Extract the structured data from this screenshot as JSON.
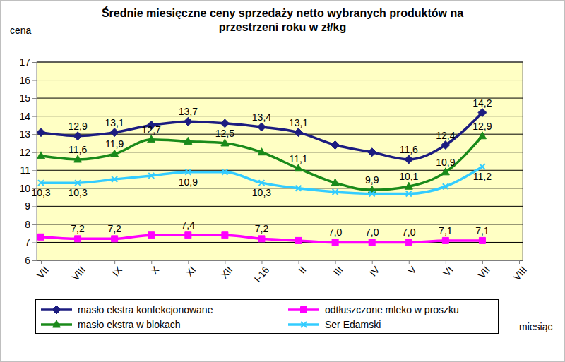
{
  "chart_data": {
    "type": "line",
    "title": "Średnie miesięczne ceny sprzedaży netto  wybranych produktów na przestrzeni roku w zł/kg",
    "y_label": "cena",
    "x_label": "miesiąc",
    "categories": [
      "VII",
      "VIII",
      "IX",
      "X",
      "XI",
      "XII",
      "I-16",
      "II",
      "III",
      "IV",
      "V",
      "VI",
      "VII",
      "VIII"
    ],
    "ylim": [
      6,
      17
    ],
    "yticks": [
      6,
      7,
      8,
      9,
      10,
      11,
      12,
      13,
      14,
      15,
      16,
      17
    ],
    "grid": true,
    "legend": "bottom",
    "data_labels": true,
    "series": [
      {
        "name": "masło ekstra konfekcjonowane",
        "color": "#1c1c80",
        "marker": "diamond",
        "values": [
          13.1,
          12.9,
          13.1,
          13.5,
          13.7,
          13.6,
          13.4,
          13.1,
          12.4,
          12.0,
          11.6,
          12.4,
          14.2,
          null
        ],
        "value_labels": [
          null,
          "12,9",
          "13,1",
          null,
          "13,7",
          null,
          "13,4",
          "13,1",
          null,
          null,
          "11,6",
          "12,4",
          "14,2",
          null
        ]
      },
      {
        "name": "odtłuszczone mleko w proszku",
        "color": "#ff00ff",
        "marker": "square",
        "values": [
          7.3,
          7.2,
          7.2,
          7.4,
          7.4,
          7.4,
          7.2,
          7.1,
          7.0,
          7.0,
          7.0,
          7.1,
          7.1,
          null
        ],
        "value_labels": [
          null,
          "7,2",
          "7,2",
          null,
          "7,4",
          null,
          "7,2",
          null,
          "7,0",
          "7,0",
          "7,0",
          "7,1",
          "7,1",
          null
        ]
      },
      {
        "name": "masło ekstra w blokach",
        "color": "#1a8a1a",
        "marker": "triangle",
        "values": [
          11.8,
          11.6,
          11.9,
          12.7,
          12.6,
          12.5,
          12.0,
          11.1,
          10.3,
          9.9,
          10.1,
          10.9,
          12.9,
          null
        ],
        "value_labels": [
          null,
          "11,6",
          "11,9",
          "12,7",
          null,
          "12,5",
          null,
          "11,1",
          null,
          "9,9",
          "10,1",
          "10,9",
          "12,9",
          null
        ]
      },
      {
        "name": "Ser Edamski",
        "color": "#33ccff",
        "marker": "x",
        "values": [
          10.3,
          10.3,
          10.5,
          10.7,
          10.9,
          10.9,
          10.3,
          10.0,
          9.8,
          9.7,
          9.7,
          10.1,
          11.2,
          null
        ],
        "value_labels": [
          "10,3",
          "10,3",
          null,
          null,
          "10,9",
          null,
          "10,3",
          null,
          null,
          null,
          null,
          null,
          "11,2",
          null
        ]
      }
    ]
  }
}
